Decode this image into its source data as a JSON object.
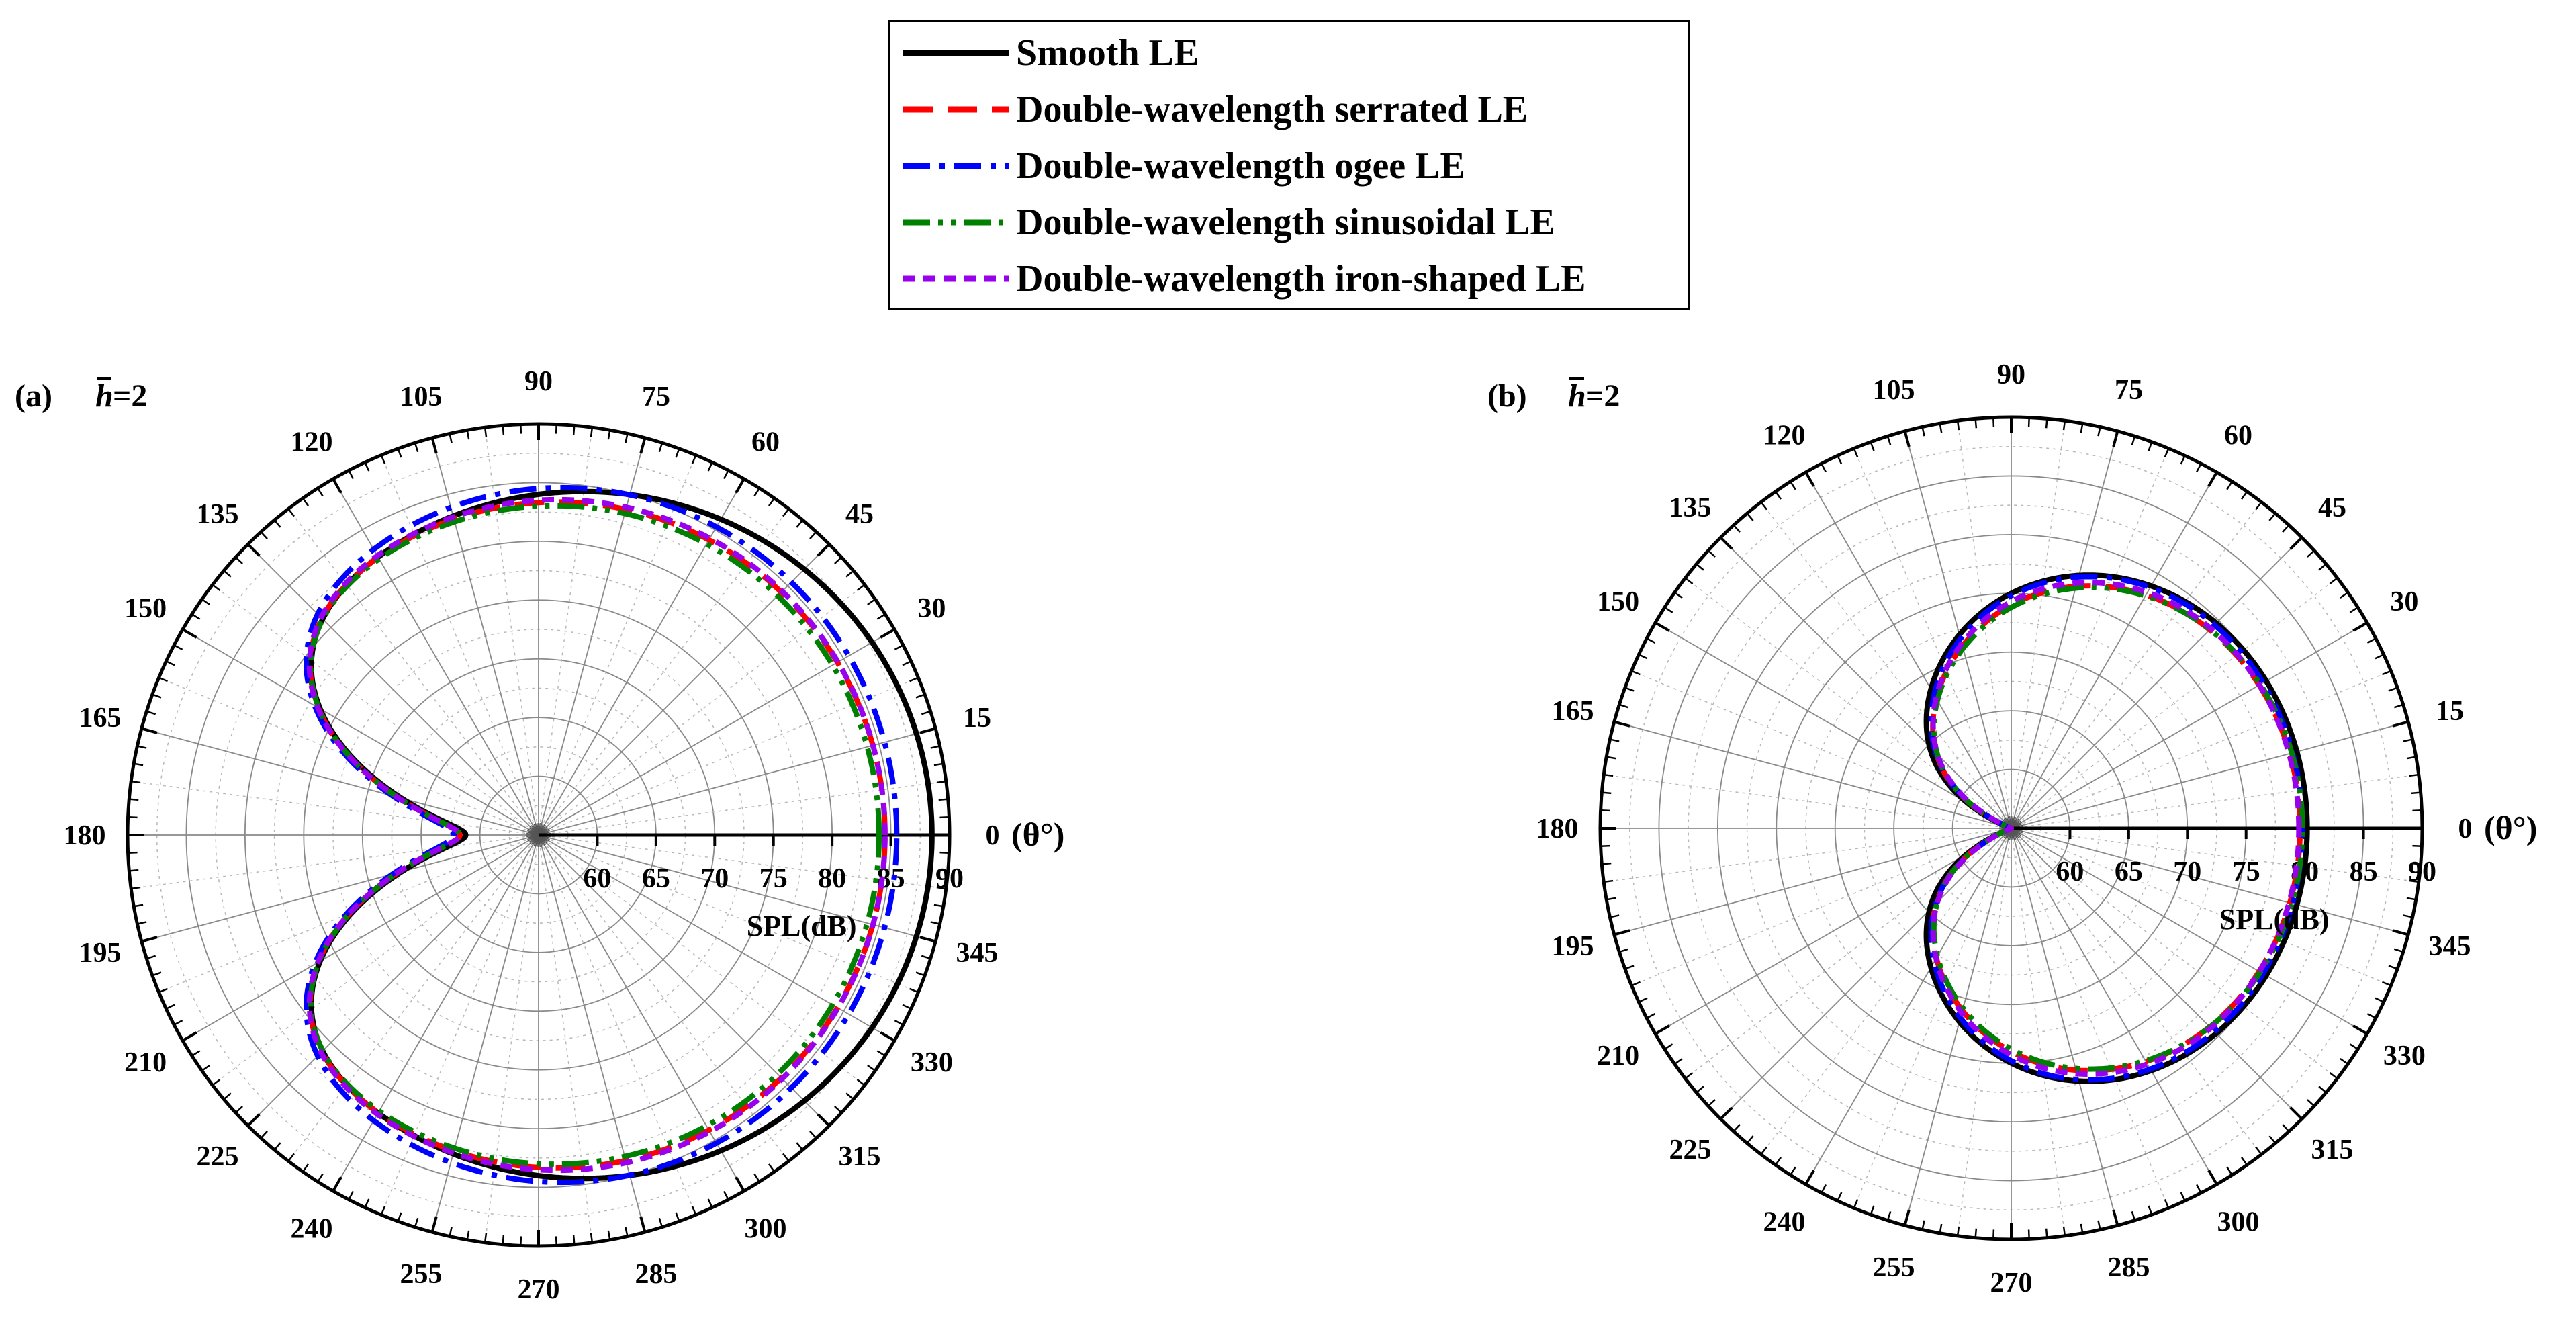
{
  "legend": {
    "items": [
      {
        "label": "Smooth LE",
        "color": "#000000",
        "dash": "solid"
      },
      {
        "label": "Double-wavelength serrated LE",
        "color": "#ff0000",
        "dash": "dash"
      },
      {
        "label": "Double-wavelength ogee LE",
        "color": "#0000ff",
        "dash": "dashdot"
      },
      {
        "label": "Double-wavelength sinusoidal LE",
        "color": "#008000",
        "dash": "dashdotdot"
      },
      {
        "label": "Double-wavelength iron-shaped LE",
        "color": "#9900ee",
        "dash": "shortdash"
      }
    ]
  },
  "chart_data": [
    {
      "type": "polar-line",
      "panel": "(a)",
      "annotation_symbol": "h",
      "annotation_value": "=2",
      "angle_unit_label": "(θ°)",
      "radial_axis_label": "SPL(dB)",
      "rlim": [
        55,
        90
      ],
      "radial_ticks": [
        "60",
        "65",
        "70",
        "75",
        "80",
        "85",
        "90"
      ],
      "angle_ticks": [
        "0",
        "15",
        "30",
        "45",
        "60",
        "75",
        "90",
        "105",
        "120",
        "135",
        "150",
        "165",
        "180",
        "195",
        "210",
        "225",
        "240",
        "255",
        "270",
        "285",
        "300",
        "315",
        "330",
        "345"
      ],
      "series": [
        {
          "name": "Smooth LE",
          "params": {
            "A": 88.5,
            "B": 81.2,
            "C": 84.0,
            "D": 20.0
          }
        },
        {
          "name": "Double-wavelength serrated LE",
          "params": {
            "A": 84.5,
            "B": 81.2,
            "C": 83.3,
            "D": 19.5
          }
        },
        {
          "name": "Double-wavelength ogee LE",
          "params": {
            "A": 85.5,
            "B": 81.2,
            "C": 84.5,
            "D": 19.0
          }
        },
        {
          "name": "Double-wavelength sinusoidal LE",
          "params": {
            "A": 84.0,
            "B": 81.2,
            "C": 83.0,
            "D": 19.5
          }
        },
        {
          "name": "Double-wavelength iron-shaped LE",
          "params": {
            "A": 84.5,
            "B": 81.2,
            "C": 83.5,
            "D": 19.5
          }
        }
      ]
    },
    {
      "type": "polar-line",
      "panel": "(b)",
      "annotation_symbol": "h",
      "annotation_value": "=2",
      "angle_unit_label": "(θ°)",
      "radial_axis_label": "SPL(dB)",
      "rlim": [
        55,
        90
      ],
      "radial_ticks": [
        "60",
        "65",
        "70",
        "75",
        "80",
        "85",
        "90"
      ],
      "angle_ticks": [
        "0",
        "15",
        "30",
        "45",
        "60",
        "75",
        "90",
        "105",
        "120",
        "135",
        "150",
        "165",
        "180",
        "195",
        "210",
        "225",
        "240",
        "255",
        "270",
        "285",
        "300",
        "315",
        "330",
        "345"
      ],
      "series": [
        {
          "name": "Smooth LE",
          "params": {
            "A": 80.2,
            "B": 60.0,
            "C": 75.0,
            "D": 13.0
          }
        },
        {
          "name": "Double-wavelength serrated LE",
          "params": {
            "A": 79.6,
            "B": 59.3,
            "C": 74.0,
            "D": 12.5
          }
        },
        {
          "name": "Double-wavelength ogee LE",
          "params": {
            "A": 79.8,
            "B": 58.8,
            "C": 74.8,
            "D": 12.5
          }
        },
        {
          "name": "Double-wavelength sinusoidal LE",
          "params": {
            "A": 79.8,
            "B": 59.3,
            "C": 73.8,
            "D": 12.5
          }
        },
        {
          "name": "Double-wavelength iron-shaped LE",
          "params": {
            "A": 79.5,
            "B": 58.8,
            "C": 74.3,
            "D": 12.5
          }
        }
      ]
    }
  ]
}
